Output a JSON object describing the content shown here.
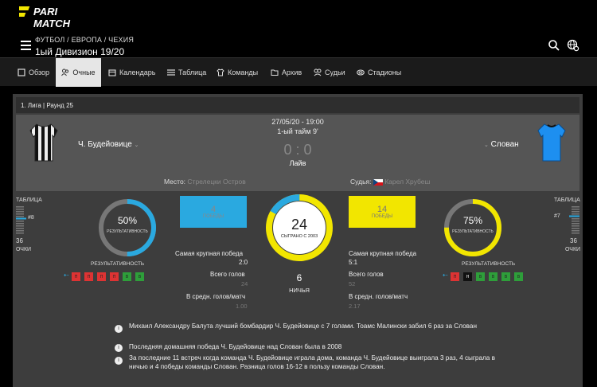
{
  "header": {
    "brand": "PARI MATCH",
    "breadcrumb": "ФУТБОЛ / ЕВРОПА / ЧЕХИЯ",
    "title": "1ый Дивизион 19/20"
  },
  "nav": {
    "items": [
      {
        "label": "Обзор",
        "icon": "cube-icon"
      },
      {
        "label": "Очные",
        "icon": "users-icon",
        "active": true
      },
      {
        "label": "Календарь",
        "icon": "calendar-icon"
      },
      {
        "label": "Таблица",
        "icon": "table-icon"
      },
      {
        "label": "Команды",
        "icon": "shirt-icon"
      },
      {
        "label": "Архив",
        "icon": "folder-icon"
      },
      {
        "label": "Судьи",
        "icon": "referee-icon"
      },
      {
        "label": "Стадионы",
        "icon": "stadium-icon"
      }
    ]
  },
  "match": {
    "round": "1. Лига | Раунд 25",
    "date": "27/05/20 - 19:00",
    "period": "1-ый тайм 9'",
    "score": "0 : 0",
    "status": "Лайв",
    "home": "Ч. Будейовице",
    "away": "Слован",
    "venue_label": "Место:",
    "venue": "Стрелецки Остров",
    "referee_label": "Судья:",
    "referee": "Карел Хрубеш"
  },
  "stats": {
    "table_label": "ТАБЛИЦА",
    "points_label": "ОЧКИ",
    "home_rank": "#8",
    "home_points": "36",
    "away_rank": "#7",
    "away_points": "36",
    "home_eff": "50%",
    "away_eff": "75%",
    "home_eff_fraction": 0.5,
    "away_eff_fraction": 0.75,
    "eff_sub": "РЕЗУЛЬТАТИВНОСТЬ",
    "form_label": "РЕЗУЛЬТАТИВНОСТЬ",
    "home_form": [
      "П",
      "П",
      "П",
      "П",
      "В",
      "В"
    ],
    "away_form": [
      "П",
      "Н",
      "В",
      "В",
      "В",
      "В"
    ],
    "home_wins": "4",
    "away_wins": "14",
    "wins_label": "ПОБЕДЫ",
    "played": "24",
    "played_label": "СЫГРАНО С 2003",
    "draws": "6",
    "draws_label": "НИЧЬЯ",
    "biggest_label": "Самая крупная победа",
    "home_biggest": "2:0",
    "away_biggest": "5:1",
    "goals_label": "Всего голов",
    "home_goals": "24",
    "away_goals": "52",
    "avg_label": "В средн. голов/матч",
    "home_avg": "1.00",
    "away_avg": "2.17",
    "colors": {
      "blue": "#2aa9e0",
      "yellow": "#f2e600",
      "win": "#2e9e3a",
      "loss": "#d33",
      "draw": "#111"
    }
  },
  "facts": [
    "Михаил Александру Балута лучший бомбардир Ч. Будейовице с 7 голами. Тоамс Малински забил 6 раз за Слован",
    "Последняя домашняя победа Ч. Будейовице над Слован была в 2008",
    "За последние 11 встреч когда команда Ч. Будейовице играла дома, команда Ч. Будейовице выиграла 3 раз, 4 сыграла в ничью и 4 победы команды Слован. Разница голов 16-12 в пользу команды Слован."
  ]
}
